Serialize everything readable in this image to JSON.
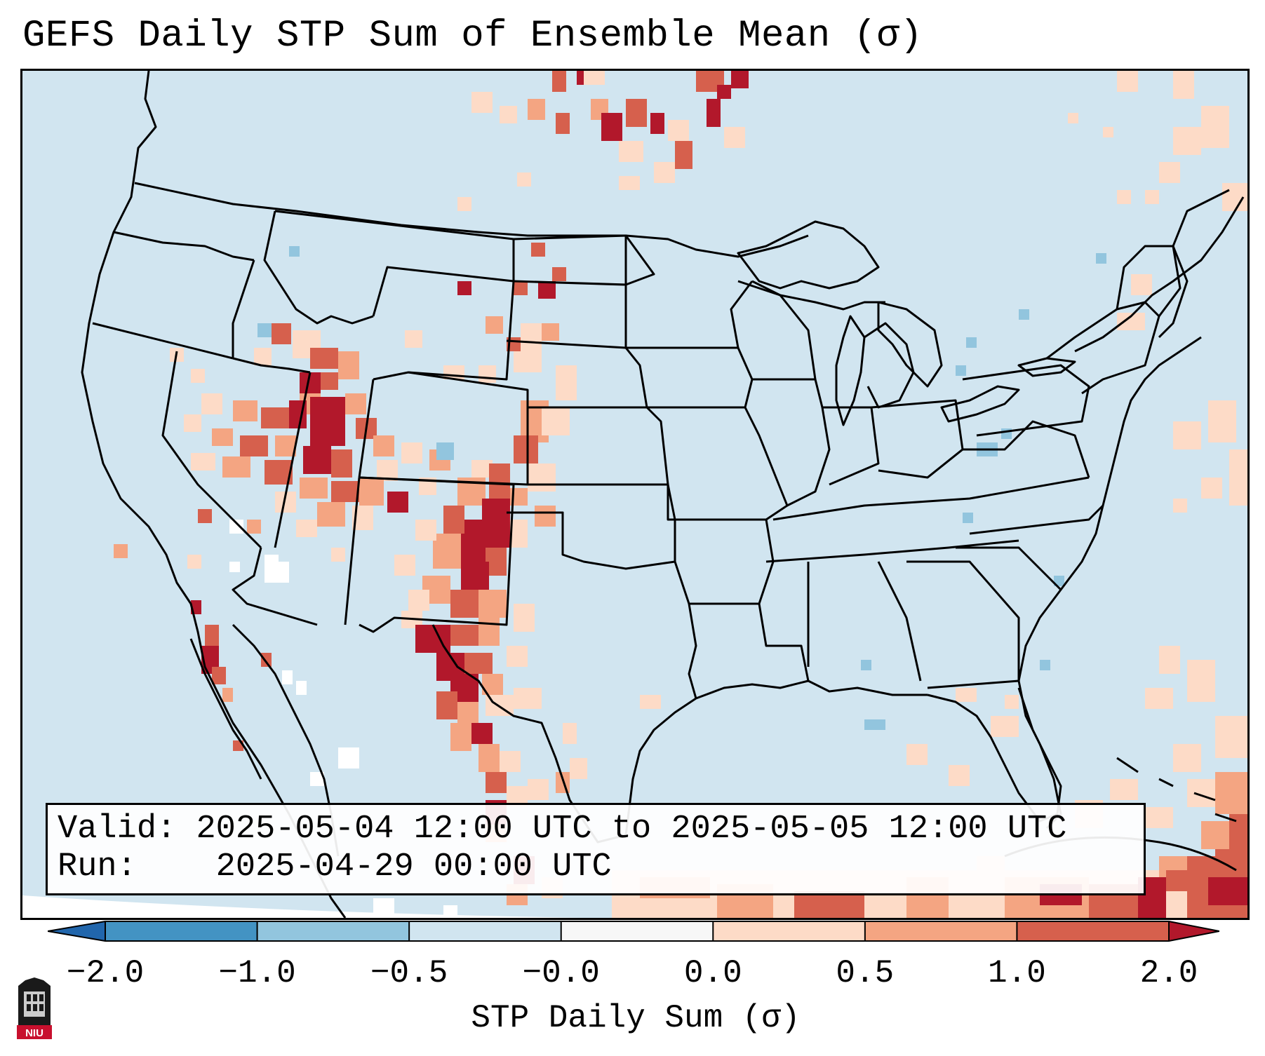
{
  "title": "GEFS Daily STP Sum of Ensemble Mean (σ)",
  "map": {
    "region": "CONUS",
    "background_color": "#d1e5f0",
    "features": [
      "us-state-boundaries",
      "coastlines",
      "great-lakes",
      "mexico",
      "cuba",
      "bahamas"
    ]
  },
  "info_box": {
    "valid_label": "Valid:",
    "valid_value": "2025-05-04 12:00 UTC to 2025-05-05 12:00 UTC",
    "run_label": "Run:",
    "run_value": "2025-04-29 00:00 UTC"
  },
  "colorbar": {
    "label": "STP Daily Sum (σ)",
    "ticks": [
      "−2.0",
      "−1.0",
      "−0.5",
      "−0.0",
      "0.0",
      "0.5",
      "1.0",
      "2.0"
    ],
    "colors": [
      "#2166ac",
      "#4393c3",
      "#92c5de",
      "#d1e5f0",
      "#f7f7f7",
      "#fddbc7",
      "#f4a582",
      "#d6604d",
      "#b2182b"
    ],
    "extend": "both"
  },
  "logo": {
    "text": "NIU",
    "icon": "niu-logo-icon"
  }
}
